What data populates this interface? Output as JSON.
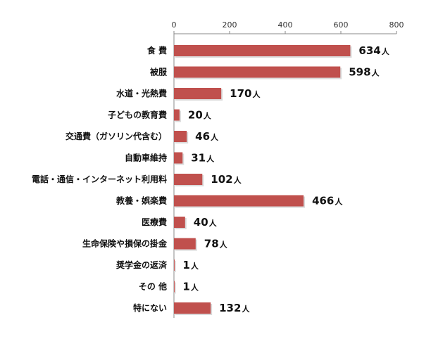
{
  "chart_data": {
    "type": "bar",
    "orientation": "horizontal",
    "categories": [
      "食 費",
      "被服",
      "水道・光熱費",
      "子どもの教育費",
      "交通費（ガソリン代含む）",
      "自動車維持",
      "電話・通信・インターネット利用料",
      "教養・娯楽費",
      "医療費",
      "生命保険や損保の掛金",
      "奨学金の返済",
      "その 他",
      "特にない"
    ],
    "values": [
      634,
      598,
      170,
      20,
      46,
      31,
      102,
      466,
      40,
      78,
      1,
      1,
      132
    ],
    "unit": "人",
    "xlim": [
      0,
      800
    ],
    "xticks": [
      0,
      200,
      400,
      600,
      800
    ],
    "grid": false,
    "legend": "none",
    "bar_color": "#c0504d"
  }
}
